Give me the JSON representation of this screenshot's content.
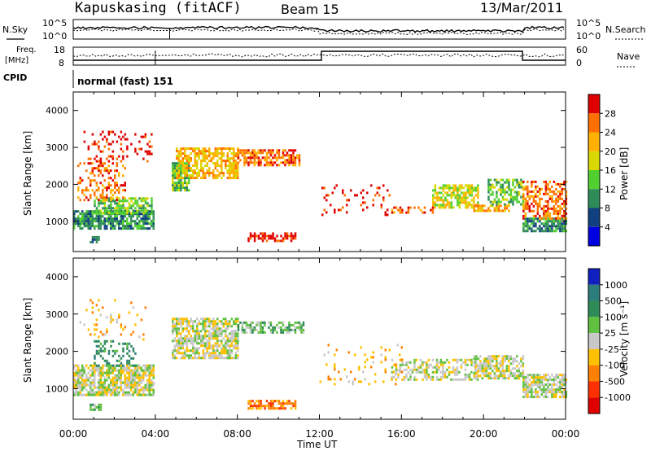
{
  "header": {
    "title": "Kapuskasing (fitACF)",
    "beam": "Beam 15",
    "date": "13/Mar/2011"
  },
  "noise_panel": {
    "left_label": "N.Sky",
    "right_label": "N.Search",
    "ticks": [
      "10^5",
      "10^0"
    ]
  },
  "freq_panel": {
    "left_label_1": "Freq.",
    "left_label_2": "[MHz]",
    "right_label": "Nave",
    "left_ticks": [
      "18",
      "8"
    ],
    "right_ticks": [
      "60",
      "0"
    ]
  },
  "cpid": {
    "label": "CPID",
    "value": "normal (fast) 151"
  },
  "time_axis": {
    "label": "Time UT",
    "ticks": [
      "00:00",
      "04:00",
      "08:00",
      "12:00",
      "16:00",
      "20:00",
      "00:00"
    ]
  },
  "chart_data": [
    {
      "type": "heatmap",
      "name": "power",
      "ylabel": "Slant Range [km]",
      "xlim": [
        0,
        24
      ],
      "ylim": [
        180,
        4500
      ],
      "yticks": [
        "1000",
        "2000",
        "3000",
        "4000"
      ],
      "yticks_values": [
        1000,
        2000,
        3000,
        4000
      ],
      "colorbar": {
        "label": "Power [dB]",
        "ticks": [
          "28",
          "24",
          "20",
          "16",
          "12",
          "8",
          "4"
        ],
        "colors": [
          "#e00000",
          "#ff7000",
          "#ffb000",
          "#d8d800",
          "#50d030",
          "#2e8b57",
          "#104080",
          "#0000e0"
        ]
      },
      "echo_regions": [
        {
          "t": [
            0.0,
            3.9
          ],
          "r": [
            800,
            1300
          ],
          "level": 5,
          "density": 0.8
        },
        {
          "t": [
            1.0,
            3.8
          ],
          "r": [
            1250,
            1650
          ],
          "level": 4,
          "density": 0.7
        },
        {
          "t": [
            0.2,
            2.5
          ],
          "r": [
            1600,
            2600
          ],
          "level": 1,
          "density": 0.35
        },
        {
          "t": [
            0.5,
            3.8
          ],
          "r": [
            2600,
            3450
          ],
          "level": 0,
          "density": 0.18
        },
        {
          "t": [
            0.8,
            1.2
          ],
          "r": [
            420,
            600
          ],
          "level": 5,
          "density": 0.7
        },
        {
          "t": [
            4.8,
            5.6
          ],
          "r": [
            1850,
            2600
          ],
          "level": 4,
          "density": 0.8
        },
        {
          "t": [
            5.0,
            8.0
          ],
          "r": [
            2150,
            3000
          ],
          "level": 2,
          "density": 0.7
        },
        {
          "t": [
            8.0,
            11.0
          ],
          "r": [
            2500,
            2950
          ],
          "level": 1,
          "density": 0.65
        },
        {
          "t": [
            8.5,
            10.8
          ],
          "r": [
            480,
            700
          ],
          "level": 0,
          "density": 0.6
        },
        {
          "t": [
            12.0,
            15.5
          ],
          "r": [
            1200,
            2000
          ],
          "level": 0,
          "density": 0.12
        },
        {
          "t": [
            15.5,
            17.5
          ],
          "r": [
            1250,
            1400
          ],
          "level": 1,
          "density": 0.5
        },
        {
          "t": [
            17.5,
            19.7
          ],
          "r": [
            1350,
            2000
          ],
          "level": 3,
          "density": 0.65
        },
        {
          "t": [
            19.5,
            21.2
          ],
          "r": [
            1300,
            1450
          ],
          "level": 2,
          "density": 0.7
        },
        {
          "t": [
            20.2,
            21.9
          ],
          "r": [
            1450,
            2150
          ],
          "level": 4,
          "density": 0.6
        },
        {
          "t": [
            21.9,
            24.0
          ],
          "r": [
            750,
            1100
          ],
          "level": 5,
          "density": 0.8
        },
        {
          "t": [
            21.9,
            24.0
          ],
          "r": [
            1100,
            2100
          ],
          "level": 1,
          "density": 0.5
        }
      ]
    },
    {
      "type": "heatmap",
      "name": "velocity",
      "ylabel": "Slant Range [km]",
      "xlim": [
        0,
        24
      ],
      "ylim": [
        180,
        4500
      ],
      "yticks": [
        "1000",
        "2000",
        "3000",
        "4000"
      ],
      "yticks_values": [
        1000,
        2000,
        3000,
        4000
      ],
      "colorbar": {
        "label": "Velocity [m s⁻¹]",
        "ticks": [
          "1000",
          "500",
          "100",
          "25",
          "-25",
          "-100",
          "-500",
          "-1000"
        ],
        "colors": [
          "#1020c0",
          "#2e7d7d",
          "#2e8b57",
          "#60c040",
          "#c8c8c8",
          "#ffc000",
          "#ff8000",
          "#ff3000",
          "#e00000"
        ]
      },
      "echo_regions": [
        {
          "t": [
            0.0,
            3.9
          ],
          "r": [
            800,
            1650
          ],
          "level": 4,
          "density": 0.8
        },
        {
          "t": [
            0.8,
            1.3
          ],
          "r": [
            420,
            600
          ],
          "level": 3,
          "density": 0.7
        },
        {
          "t": [
            1.0,
            3.0
          ],
          "r": [
            1600,
            2300
          ],
          "level": 2,
          "density": 0.25
        },
        {
          "t": [
            0.3,
            3.5
          ],
          "r": [
            2300,
            3400
          ],
          "level": 5,
          "density": 0.12
        },
        {
          "t": [
            4.8,
            8.0
          ],
          "r": [
            1850,
            2900
          ],
          "level": 4,
          "density": 0.75
        },
        {
          "t": [
            8.0,
            11.2
          ],
          "r": [
            2500,
            2800
          ],
          "level": 3,
          "density": 0.6
        },
        {
          "t": [
            8.5,
            10.8
          ],
          "r": [
            480,
            700
          ],
          "level": 6,
          "density": 0.7
        },
        {
          "t": [
            15.5,
            19.7
          ],
          "r": [
            1250,
            1800
          ],
          "level": 4,
          "density": 0.55
        },
        {
          "t": [
            19.5,
            21.9
          ],
          "r": [
            1250,
            1900
          ],
          "level": 4,
          "density": 0.7
        },
        {
          "t": [
            21.9,
            24.0
          ],
          "r": [
            750,
            1400
          ],
          "level": 4,
          "density": 0.75
        },
        {
          "t": [
            12.0,
            16.0
          ],
          "r": [
            1100,
            2200
          ],
          "level": 5,
          "density": 0.1
        }
      ]
    }
  ]
}
